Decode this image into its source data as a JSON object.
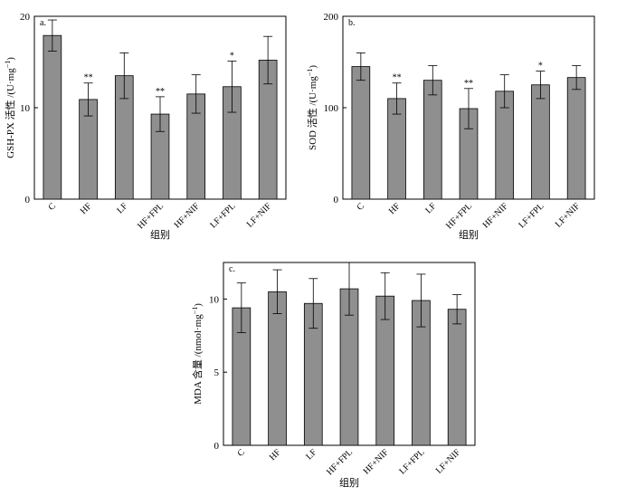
{
  "chart_data": [
    {
      "type": "bar",
      "panel_label": "a.",
      "ylabel_main": "GSH-PX 活性 /(U·mg",
      "ylabel_sup": "−1",
      "ylabel_close": ")",
      "xlabel": "组别",
      "categories": [
        "C",
        "HF",
        "LF",
        "HF+FPL",
        "HF+NIF",
        "LF+FPL",
        "LF+NIF"
      ],
      "values": [
        17.9,
        10.9,
        13.5,
        9.3,
        11.5,
        12.3,
        15.2
      ],
      "errors": [
        1.7,
        1.8,
        2.5,
        1.9,
        2.1,
        2.8,
        2.6
      ],
      "significance": [
        "",
        "**",
        "",
        "**",
        "",
        "*",
        ""
      ],
      "ylim": [
        0,
        20
      ],
      "yticks": [
        "0",
        "10",
        "20"
      ],
      "colors": {
        "bar": "#8f8f8f",
        "bar_stroke": "#000000"
      }
    },
    {
      "type": "bar",
      "panel_label": "b.",
      "ylabel_main": "SOD 活性 /(U·mg",
      "ylabel_sup": "−1",
      "ylabel_close": ")",
      "xlabel": "组别",
      "categories": [
        "C",
        "HF",
        "LF",
        "HF+FPL",
        "HF+NIF",
        "LF+FPL",
        "LF+NIF"
      ],
      "values": [
        145,
        110,
        130,
        99,
        118,
        125,
        133
      ],
      "errors": [
        15,
        17,
        16,
        22,
        18,
        15,
        13
      ],
      "significance": [
        "",
        "**",
        "",
        "**",
        "",
        "*",
        ""
      ],
      "ylim": [
        0,
        200
      ],
      "yticks": [
        "0",
        "100",
        "200"
      ],
      "colors": {
        "bar": "#8f8f8f",
        "bar_stroke": "#000000"
      }
    },
    {
      "type": "bar",
      "panel_label": "c.",
      "ylabel_main": "MDA 含量 /(nmol·mg",
      "ylabel_sup": "−1",
      "ylabel_close": ")",
      "xlabel": "组别",
      "categories": [
        "C",
        "HF",
        "LF",
        "HF+FPL",
        "HF+NIF",
        "LF+FPL",
        "LF+NIF"
      ],
      "values": [
        9.4,
        10.5,
        9.7,
        10.7,
        10.2,
        9.9,
        9.3
      ],
      "errors": [
        1.7,
        1.5,
        1.7,
        1.8,
        1.6,
        1.8,
        1.0
      ],
      "significance": [
        "",
        "",
        "",
        "",
        "",
        "",
        ""
      ],
      "ylim": [
        0,
        12.5
      ],
      "yticks": [
        "0",
        "5",
        "10"
      ],
      "colors": {
        "bar": "#8f8f8f",
        "bar_stroke": "#000000"
      }
    }
  ]
}
